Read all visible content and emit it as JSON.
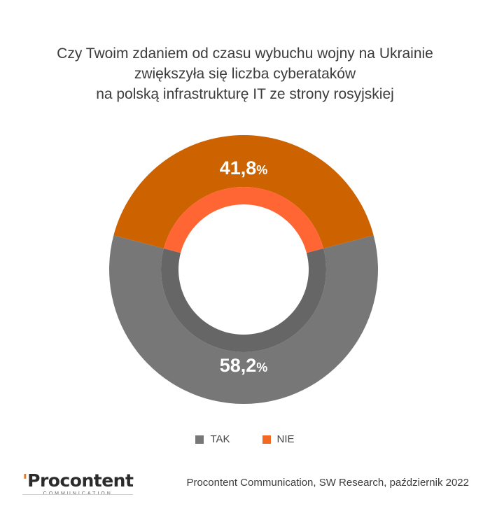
{
  "title_lines": [
    "Czy Twoim zdaniem od czasu wybuchu wojny na Ukrainie",
    "zwiększyła się liczba cyberataków",
    "na polską infrastrukturę IT ze strony rosyjskiej"
  ],
  "chart_data": {
    "type": "pie",
    "donut": true,
    "categories": [
      "TAK",
      "NIE"
    ],
    "values": [
      58.2,
      41.8
    ],
    "labels": [
      "58,2",
      "41,8"
    ],
    "unit": "%",
    "colors": {
      "TAK": "#777777",
      "NIE": "#cc6200",
      "NIE_inner": "#ff6633",
      "TAK_inner": "#666666"
    },
    "legend_position": "bottom"
  },
  "legend": [
    {
      "label": "TAK",
      "color": "#777777"
    },
    {
      "label": "NIE",
      "color": "#f26a21"
    }
  ],
  "footer": {
    "logo_text": "Procontent",
    "logo_sub": "COMMUNICATION",
    "source": "Procontent Communication, SW Research, październik 2022"
  }
}
